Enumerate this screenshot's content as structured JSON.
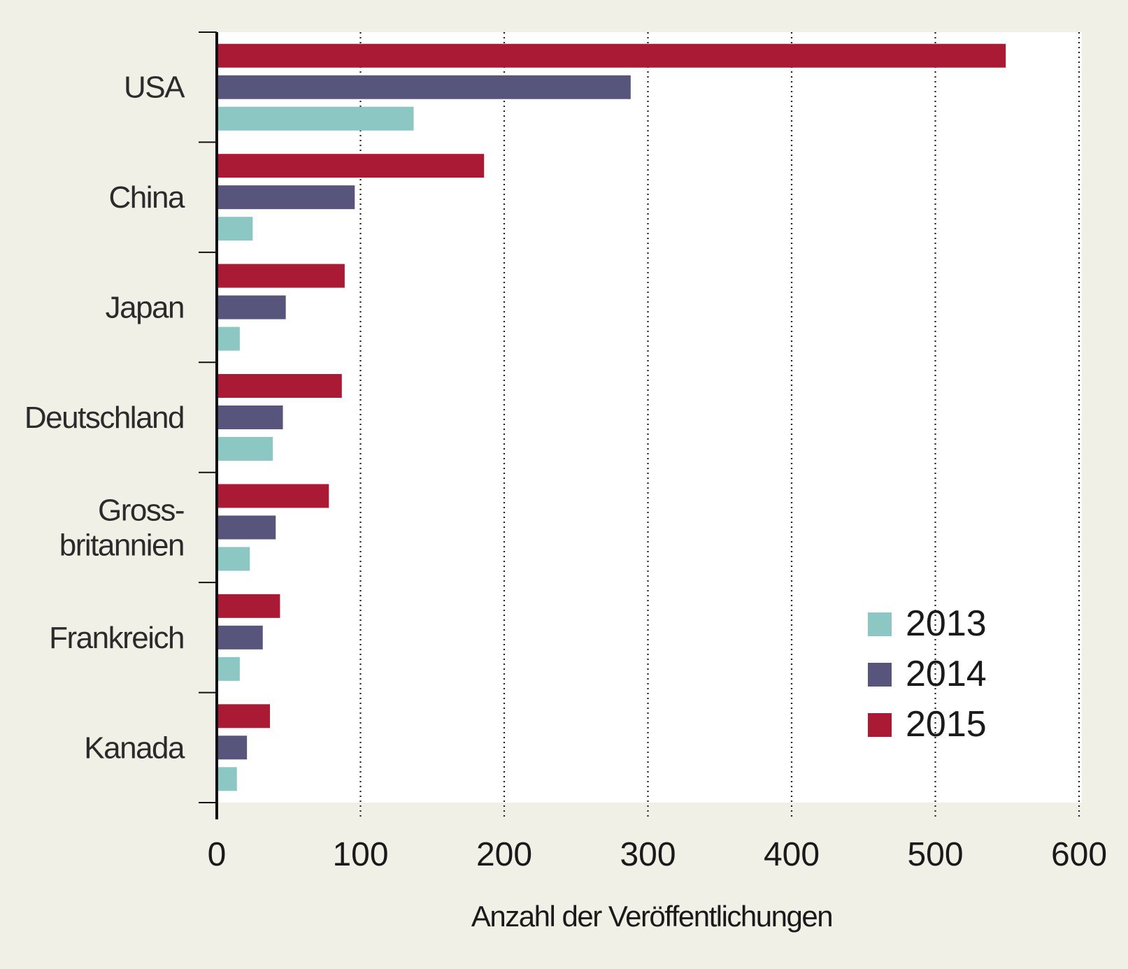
{
  "chart_data": {
    "type": "bar",
    "orientation": "horizontal",
    "categories": [
      "USA",
      "China",
      "Japan",
      "Deutschland",
      "Gross-\nbritannien",
      "Frankreich",
      "Kanada"
    ],
    "series": [
      {
        "name": "2013",
        "color": "#8dc7c3",
        "values": [
          137,
          25,
          16,
          39,
          23,
          16,
          14
        ]
      },
      {
        "name": "2014",
        "color": "#58557d",
        "values": [
          288,
          96,
          48,
          46,
          41,
          32,
          21
        ]
      },
      {
        "name": "2015",
        "color": "#ab1a35",
        "values": [
          549,
          186,
          89,
          87,
          78,
          44,
          37
        ]
      }
    ],
    "xlim": [
      0,
      600
    ],
    "xticks": [
      "0",
      "100",
      "200",
      "300",
      "400",
      "500",
      "600"
    ],
    "xlabel": "Anzahl der Veröffentlichungen",
    "ylabel": "",
    "title": "",
    "grid": "vertical dotted",
    "legend_position": "bottom-right"
  }
}
